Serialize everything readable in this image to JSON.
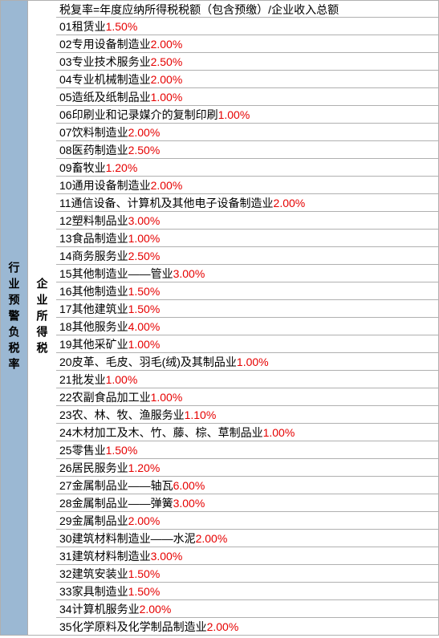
{
  "left_label": "行业预警负税率",
  "mid_label": "企业所得税",
  "header": "税复率=年度应纳所得税税额（包含预缴）/企业收入总额",
  "rate_color": "#e60000",
  "text_color": "#000000",
  "left_bg": "#9bb8d3",
  "border_color": "#b0b0b0",
  "rows": [
    {
      "num": "01",
      "label": " 租赁业 ",
      "rate": "1.50%"
    },
    {
      "num": "02",
      "label": " 专用设备制造业 ",
      "rate": "2.00%"
    },
    {
      "num": "03",
      "label": " 专业技术服务业 ",
      "rate": "2.50%"
    },
    {
      "num": "04",
      "label": " 专业机械制造业 ",
      "rate": "2.00%"
    },
    {
      "num": "05",
      "label": " 造纸及纸制品业 ",
      "rate": "1.00%"
    },
    {
      "num": "06",
      "label": " 印刷业和记录媒介的复制印刷 ",
      "rate": "1.00%"
    },
    {
      "num": "07",
      "label": " 饮料制造业 ",
      "rate": "2.00%"
    },
    {
      "num": "08",
      "label": " 医药制造业 ",
      "rate": "2.50%"
    },
    {
      "num": "09",
      "label": " 畜牧业 ",
      "rate": "1.20%"
    },
    {
      "num": "10",
      "label": " 通用设备制造业 ",
      "rate": "2.00%"
    },
    {
      "num": "11",
      "label": " 通信设备、计算机及其他电子设备制造业",
      "rate": "2.00%"
    },
    {
      "num": "12",
      "label": " 塑料制品业 ",
      "rate": "3.00%"
    },
    {
      "num": "13",
      "label": " 食品制造业 ",
      "rate": "1.00%"
    },
    {
      "num": "14",
      "label": " 商务服务业 ",
      "rate": "2.50%"
    },
    {
      "num": "15",
      "label": " 其他制造业——管业 ",
      "rate": "3.00%"
    },
    {
      "num": "16",
      "label": " 其他制造业 ",
      "rate": "1.50%"
    },
    {
      "num": "17",
      "label": " 其他建筑业 ",
      "rate": "1.50%"
    },
    {
      "num": "18",
      "label": " 其他服务业 ",
      "rate": "4.00%"
    },
    {
      "num": "19",
      "label": " 其他采矿业 ",
      "rate": "1.00%"
    },
    {
      "num": "20",
      "label": " 皮革、毛皮、羽毛(绒)及其制品业",
      "rate": "1.00%"
    },
    {
      "num": "21",
      "label": " 批发业 ",
      "rate": "1.00%"
    },
    {
      "num": "22",
      "label": " 农副食品加工业 ",
      "rate": "1.00%"
    },
    {
      "num": "23",
      "label": " 农、林、牧、渔服务业 ",
      "rate": "1.10%"
    },
    {
      "num": "24",
      "label": " 木材加工及木、竹、藤、棕、草制品业 ",
      "rate": "1.00%"
    },
    {
      "num": "25",
      "label": " 零售业 ",
      "rate": "1.50%"
    },
    {
      "num": "26",
      "label": " 居民服务业 ",
      "rate": "1.20%"
    },
    {
      "num": "27",
      "label": " 金属制品业——轴瓦 ",
      "rate": "6.00%"
    },
    {
      "num": "28",
      "label": " 金属制品业——弹簧 ",
      "rate": "3.00%"
    },
    {
      "num": "29",
      "label": "金属制品业 ",
      "rate": "2.00%"
    },
    {
      "num": "30",
      "label": " 建筑材料制造业——水泥 ",
      "rate": "2.00%"
    },
    {
      "num": "31",
      "label": " 建筑材料制造业 ",
      "rate": "3.00%"
    },
    {
      "num": "32",
      "label": " 建筑安装业 ",
      "rate": "1.50%"
    },
    {
      "num": "33",
      "label": " 家具制造业 ",
      "rate": "1.50%"
    },
    {
      "num": "34",
      "label": " 计算机服务业 ",
      "rate": "2.00%"
    },
    {
      "num": "35",
      "label": " 化学原料及化学制品制造业 ",
      "rate": "2.00%"
    }
  ]
}
